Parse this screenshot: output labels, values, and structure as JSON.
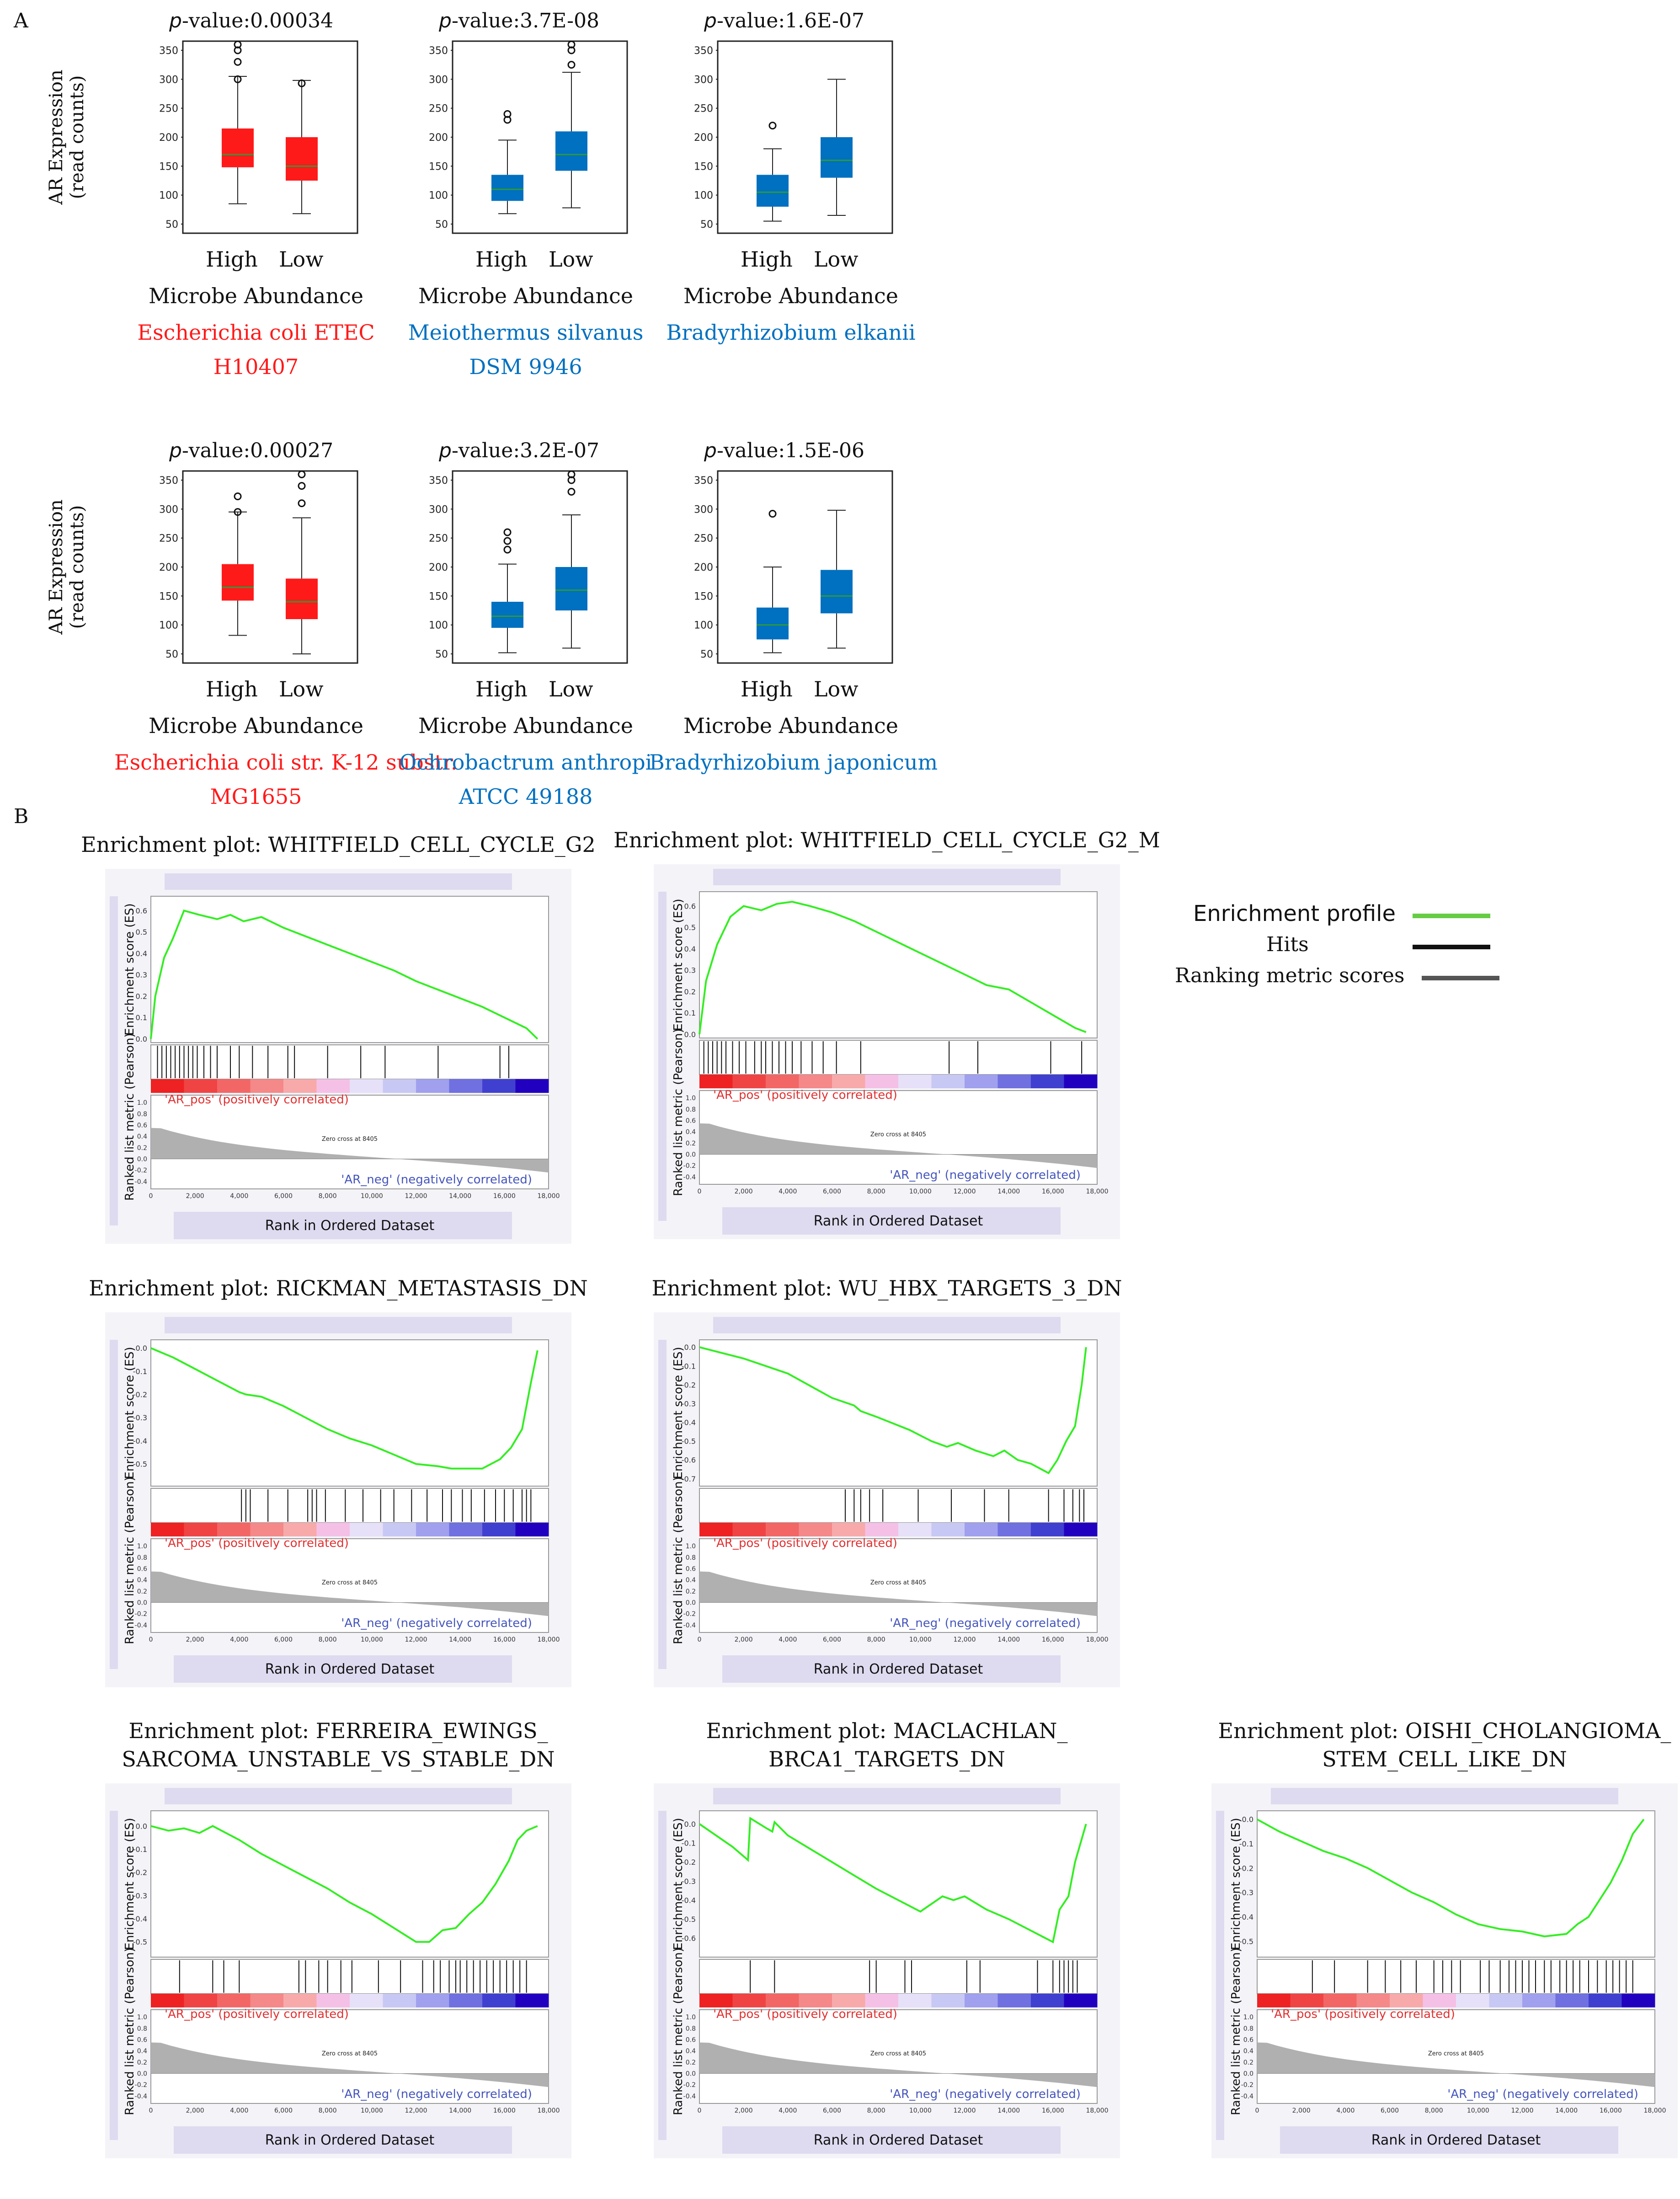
{
  "panel_labels": {
    "a": "A",
    "b": "B"
  },
  "panel_a": {
    "y_axis_title_line1": "AR Expression",
    "y_axis_title_line2": "(read counts)",
    "x_label": "Microbe Abundance",
    "group_high": "High",
    "group_low": "Low",
    "pvalue_prefix": "p",
    "plots": [
      {
        "pvalue": "-value:0.00034",
        "microbe_line1": "Escherichia coli ETEC",
        "microbe_line2": "H10407",
        "color": "#ff1a1a"
      },
      {
        "pvalue": "-value:3.7E-08",
        "microbe_line1": "Meiothermus silvanus",
        "microbe_line2": "DSM 9946",
        "color": "#0070c0"
      },
      {
        "pvalue": "-value:1.6E-07",
        "microbe_line1": "Bradyrhizobium elkanii",
        "microbe_line2": "",
        "color": "#0070c0"
      },
      {
        "pvalue": "-value:0.00027",
        "microbe_line1": "Escherichia coli str. K-12 substr.",
        "microbe_line2": "MG1655",
        "color": "#ff1a1a"
      },
      {
        "pvalue": "-value:3.2E-07",
        "microbe_line1": "Ochrobactrum anthropi",
        "microbe_line2": "ATCC 49188",
        "color": "#0070c0"
      },
      {
        "pvalue": "-value:1.5E-06",
        "microbe_line1": "Bradyrhizobium japonicum",
        "microbe_line2": "",
        "color": "#0070c0"
      }
    ]
  },
  "panel_b": {
    "es_label": "Enrichment score (ES)",
    "rank_label": "Ranked list metric (Pearson)",
    "x_label": "Rank in Ordered Dataset",
    "pos_label": "'AR_pos' (positively correlated)",
    "neg_label": "'AR_neg' (negatively correlated)",
    "zero_cross": "Zero cross at 8405",
    "titles": [
      [
        "Enrichment plot: WHITFIELD_CELL_CYCLE_G2"
      ],
      [
        "Enrichment plot: WHITFIELD_CELL_CYCLE_G2_M"
      ],
      [
        "Enrichment plot: RICKMAN_METASTASIS_DN"
      ],
      [
        "Enrichment plot: WU_HBX_TARGETS_3_DN"
      ],
      [
        "Enrichment plot: FERREIRA_EWINGS_",
        "SARCOMA_UNSTABLE_VS_STABLE_DN"
      ],
      [
        "Enrichment plot: MACLACHLAN_",
        "BRCA1_TARGETS_DN"
      ],
      [
        "Enrichment plot: OISHI_CHOLANGIOMA_",
        "STEM_CELL_LIKE_DN"
      ]
    ]
  },
  "legend": {
    "items": [
      {
        "label": "Enrichment profile",
        "color": "#66cc44"
      },
      {
        "label": "Hits",
        "color": "#111111"
      },
      {
        "label": "Ranking metric scores",
        "color": "#555555"
      }
    ]
  },
  "chart_data": [
    {
      "type": "box",
      "title": "p-value:0.00034",
      "xlabel": "Microbe Abundance",
      "ylabel": "AR Expression (read counts)",
      "categories": [
        "High",
        "Low"
      ],
      "ylim": [
        50,
        350
      ],
      "yticks": [
        50,
        100,
        150,
        200,
        250,
        300,
        350
      ],
      "boxes": [
        {
          "min": 85,
          "q1": 148,
          "median": 170,
          "q3": 215,
          "max": 305,
          "outliers": [
            300,
            330,
            350,
            360
          ]
        },
        {
          "min": 68,
          "q1": 125,
          "median": 150,
          "q3": 200,
          "max": 298,
          "outliers": [
            293
          ]
        }
      ]
    },
    {
      "type": "box",
      "title": "p-value:3.7E-08",
      "xlabel": "Microbe Abundance",
      "ylabel": "AR Expression (read counts)",
      "categories": [
        "High",
        "Low"
      ],
      "ylim": [
        50,
        350
      ],
      "yticks": [
        50,
        100,
        150,
        200,
        250,
        300,
        350
      ],
      "boxes": [
        {
          "min": 68,
          "q1": 90,
          "median": 110,
          "q3": 135,
          "max": 195,
          "outliers": [
            230,
            240
          ]
        },
        {
          "min": 78,
          "q1": 142,
          "median": 170,
          "q3": 210,
          "max": 312,
          "outliers": [
            325,
            350,
            360
          ]
        }
      ]
    },
    {
      "type": "box",
      "title": "p-value:1.6E-07",
      "xlabel": "Microbe Abundance",
      "ylabel": "",
      "categories": [
        "High",
        "Low"
      ],
      "ylim": [
        50,
        350
      ],
      "yticks": [
        50,
        100,
        150,
        200,
        250,
        300,
        350
      ],
      "boxes": [
        {
          "min": 55,
          "q1": 80,
          "median": 105,
          "q3": 135,
          "max": 180,
          "outliers": [
            220
          ]
        },
        {
          "min": 65,
          "q1": 130,
          "median": 160,
          "q3": 200,
          "max": 300,
          "outliers": []
        }
      ]
    },
    {
      "type": "box",
      "title": "p-value:0.00027",
      "xlabel": "Microbe Abundance",
      "ylabel": "AR Expression (read counts)",
      "categories": [
        "High",
        "Low"
      ],
      "ylim": [
        50,
        350
      ],
      "yticks": [
        50,
        100,
        150,
        200,
        250,
        300,
        350
      ],
      "boxes": [
        {
          "min": 82,
          "q1": 142,
          "median": 165,
          "q3": 205,
          "max": 295,
          "outliers": [
            295,
            322
          ]
        },
        {
          "min": 50,
          "q1": 110,
          "median": 140,
          "q3": 180,
          "max": 285,
          "outliers": [
            310,
            340,
            360
          ]
        }
      ]
    },
    {
      "type": "box",
      "title": "p-value:3.2E-07",
      "xlabel": "Microbe Abundance",
      "ylabel": "",
      "categories": [
        "High",
        "Low"
      ],
      "ylim": [
        50,
        350
      ],
      "yticks": [
        50,
        100,
        150,
        200,
        250,
        300,
        350
      ],
      "boxes": [
        {
          "min": 52,
          "q1": 95,
          "median": 115,
          "q3": 140,
          "max": 205,
          "outliers": [
            230,
            245,
            260
          ]
        },
        {
          "min": 60,
          "q1": 125,
          "median": 160,
          "q3": 200,
          "max": 290,
          "outliers": [
            330,
            350,
            360
          ]
        }
      ]
    },
    {
      "type": "box",
      "title": "p-value:1.5E-06",
      "xlabel": "Microbe Abundance",
      "ylabel": "",
      "categories": [
        "High",
        "Low"
      ],
      "ylim": [
        50,
        350
      ],
      "yticks": [
        50,
        100,
        150,
        200,
        250,
        300,
        350
      ],
      "boxes": [
        {
          "min": 52,
          "q1": 75,
          "median": 100,
          "q3": 130,
          "max": 200,
          "outliers": [
            292
          ]
        },
        {
          "min": 60,
          "q1": 120,
          "median": 150,
          "q3": 195,
          "max": 298,
          "outliers": []
        }
      ]
    },
    {
      "type": "line",
      "title": "Enrichment plot: WHITFIELD_CELL_CYCLE_G2",
      "ylabel": "Enrichment score (ES)",
      "xlabel": "Rank in Ordered Dataset",
      "ylim": [
        0,
        0.65
      ],
      "yticks": [
        0.0,
        0.1,
        0.2,
        0.3,
        0.4,
        0.5,
        0.6
      ],
      "xlim": [
        0,
        18000
      ],
      "xticks": [
        0,
        2000,
        4000,
        6000,
        8000,
        10000,
        12000,
        14000,
        16000,
        18000
      ],
      "x": [
        0,
        200,
        600,
        1000,
        1500,
        2200,
        3000,
        3600,
        4200,
        5000,
        6000,
        7000,
        8000,
        9000,
        10000,
        11000,
        12000,
        13000,
        14000,
        15000,
        16000,
        17000,
        17500
      ],
      "y": [
        0,
        0.2,
        0.38,
        0.47,
        0.6,
        0.58,
        0.56,
        0.58,
        0.55,
        0.57,
        0.52,
        0.48,
        0.44,
        0.4,
        0.36,
        0.32,
        0.27,
        0.23,
        0.19,
        0.15,
        0.1,
        0.05,
        0.0
      ],
      "hits": [
        300,
        500,
        700,
        900,
        1100,
        1300,
        1500,
        1700,
        1900,
        2100,
        2400,
        2700,
        3000,
        3600,
        4000,
        4600,
        5300,
        6200,
        6500,
        8000,
        9500,
        10600,
        13000,
        15800,
        16200
      ]
    },
    {
      "type": "line",
      "title": "Enrichment plot: WHITFIELD_CELL_CYCLE_G2_M",
      "ylabel": "Enrichment score (ES)",
      "xlabel": "Rank in Ordered Dataset",
      "ylim": [
        0,
        0.65
      ],
      "yticks": [
        0.0,
        0.1,
        0.2,
        0.3,
        0.4,
        0.5,
        0.6
      ],
      "xlim": [
        0,
        18000
      ],
      "xticks": [
        0,
        2000,
        4000,
        6000,
        8000,
        10000,
        12000,
        14000,
        16000,
        18000
      ],
      "x": [
        0,
        300,
        800,
        1400,
        2000,
        2800,
        3500,
        4200,
        5000,
        6000,
        7000,
        8000,
        9000,
        10000,
        11000,
        12000,
        13000,
        14000,
        15000,
        16000,
        17000,
        17500
      ],
      "y": [
        0,
        0.25,
        0.42,
        0.55,
        0.6,
        0.58,
        0.61,
        0.62,
        0.6,
        0.57,
        0.53,
        0.48,
        0.43,
        0.38,
        0.33,
        0.28,
        0.23,
        0.21,
        0.15,
        0.09,
        0.03,
        0.01
      ],
      "hits": [
        200,
        400,
        600,
        800,
        1000,
        1200,
        1500,
        1800,
        2100,
        2500,
        2800,
        3000,
        3300,
        3600,
        3900,
        4200,
        4600,
        5100,
        5600,
        6200,
        7300,
        11300,
        12600,
        15900,
        17300
      ]
    },
    {
      "type": "line",
      "title": "Enrichment plot: RICKMAN_METASTASIS_DN",
      "ylabel": "Enrichment score (ES)",
      "xlabel": "Rank in Ordered Dataset",
      "ylim": [
        -0.58,
        0.02
      ],
      "yticks": [
        0.0,
        -0.1,
        -0.2,
        -0.3,
        -0.4,
        -0.5
      ],
      "xlim": [
        0,
        18000
      ],
      "xticks": [
        0,
        2000,
        4000,
        6000,
        8000,
        10000,
        12000,
        14000,
        16000,
        18000
      ],
      "x": [
        0,
        1000,
        2000,
        3000,
        4000,
        4300,
        5000,
        6000,
        7000,
        8000,
        9000,
        10000,
        11000,
        12000,
        13000,
        13600,
        14200,
        15000,
        15800,
        16300,
        16800,
        17200,
        17500
      ],
      "y": [
        0,
        -0.04,
        -0.09,
        -0.14,
        -0.19,
        -0.2,
        -0.21,
        -0.25,
        -0.3,
        -0.35,
        -0.39,
        -0.42,
        -0.46,
        -0.5,
        -0.51,
        -0.52,
        -0.52,
        -0.52,
        -0.48,
        -0.43,
        -0.35,
        -0.15,
        -0.01
      ],
      "hits": [
        4100,
        4300,
        4500,
        5300,
        6200,
        7100,
        7300,
        7500,
        7900,
        8800,
        9600,
        10400,
        11000,
        11800,
        12500,
        13200,
        13600,
        14100,
        14500,
        15100,
        15600,
        16000,
        16400,
        16800,
        17000,
        17200
      ]
    },
    {
      "type": "line",
      "title": "Enrichment plot: WU_HBX_TARGETS_3_DN",
      "ylabel": "Enrichment score (ES)",
      "xlabel": "Rank in Ordered Dataset",
      "ylim": [
        -0.72,
        0.02
      ],
      "yticks": [
        0.0,
        -0.1,
        -0.2,
        -0.3,
        -0.4,
        -0.5,
        -0.6,
        -0.7
      ],
      "xlim": [
        0,
        18000
      ],
      "xticks": [
        0,
        2000,
        4000,
        6000,
        8000,
        10000,
        12000,
        14000,
        16000,
        18000
      ],
      "x": [
        0,
        2000,
        4000,
        6000,
        7000,
        7300,
        8000,
        9500,
        10500,
        11200,
        11700,
        12500,
        13300,
        13800,
        14400,
        15000,
        15800,
        16200,
        16600,
        17000,
        17300,
        17500
      ],
      "y": [
        0,
        -0.06,
        -0.14,
        -0.27,
        -0.31,
        -0.34,
        -0.37,
        -0.44,
        -0.5,
        -0.53,
        -0.51,
        -0.55,
        -0.58,
        -0.55,
        -0.6,
        -0.62,
        -0.67,
        -0.6,
        -0.5,
        -0.42,
        -0.2,
        0.0
      ],
      "hits": [
        6600,
        7000,
        7300,
        7700,
        8300,
        9900,
        11400,
        12900,
        14000,
        15800,
        16500,
        16900,
        17200,
        17400
      ]
    },
    {
      "type": "line",
      "title": "Enrichment plot: FERREIRA_EWINGS_ SARCOMA_UNSTABLE_VS_STABLE_DN",
      "ylabel": "Enrichment score (ES)",
      "xlabel": "Rank in Ordered Dataset",
      "ylim": [
        -0.55,
        0.05
      ],
      "yticks": [
        0.0,
        -0.1,
        -0.2,
        -0.3,
        -0.4,
        -0.5
      ],
      "xlim": [
        0,
        18000
      ],
      "xticks": [
        0,
        2000,
        4000,
        6000,
        8000,
        10000,
        12000,
        14000,
        16000,
        18000
      ],
      "x": [
        0,
        800,
        1500,
        2200,
        2800,
        3400,
        4000,
        5000,
        6000,
        7000,
        8000,
        9000,
        10000,
        11000,
        12000,
        12600,
        13200,
        13800,
        14400,
        15000,
        15600,
        16200,
        16600,
        17000,
        17500
      ],
      "y": [
        0,
        -0.02,
        -0.01,
        -0.03,
        0.0,
        -0.03,
        -0.06,
        -0.12,
        -0.17,
        -0.22,
        -0.27,
        -0.33,
        -0.38,
        -0.44,
        -0.5,
        -0.5,
        -0.45,
        -0.44,
        -0.38,
        -0.33,
        -0.25,
        -0.15,
        -0.06,
        -0.02,
        0.0
      ],
      "hits": [
        1300,
        2800,
        3300,
        4000,
        6700,
        7000,
        7600,
        8000,
        8600,
        9100,
        10300,
        11300,
        12300,
        12800,
        13100,
        13500,
        13800,
        14000,
        14300,
        14600,
        14900,
        15200,
        15500,
        15800,
        16100,
        16400,
        16700,
        17000
      ]
    },
    {
      "type": "line",
      "title": "Enrichment plot: MACLACHLAN_ BRCA1_TARGETS_DN",
      "ylabel": "Enrichment score (ES)",
      "xlabel": "Rank in Ordered Dataset",
      "ylim": [
        -0.68,
        0.05
      ],
      "yticks": [
        0.0,
        -0.1,
        -0.2,
        -0.3,
        -0.4,
        -0.5,
        -0.6
      ],
      "xlim": [
        0,
        18000
      ],
      "xticks": [
        0,
        2000,
        4000,
        6000,
        8000,
        10000,
        12000,
        14000,
        16000,
        18000
      ],
      "x": [
        0,
        1500,
        2200,
        2300,
        3000,
        3300,
        3400,
        4000,
        5000,
        6000,
        7000,
        8000,
        9000,
        10000,
        11000,
        11500,
        12000,
        13000,
        14000,
        15000,
        16000,
        16300,
        16700,
        17000,
        17500
      ],
      "y": [
        0,
        -0.12,
        -0.19,
        0.03,
        -0.02,
        -0.04,
        0.01,
        -0.06,
        -0.13,
        -0.2,
        -0.27,
        -0.34,
        -0.4,
        -0.46,
        -0.38,
        -0.4,
        -0.38,
        -0.45,
        -0.5,
        -0.56,
        -0.62,
        -0.45,
        -0.38,
        -0.2,
        0.0
      ],
      "hits": [
        2300,
        3400,
        7700,
        8000,
        9300,
        9600,
        12100,
        12700,
        15300,
        16000,
        16300,
        16500,
        16700,
        16900,
        17100
      ]
    },
    {
      "type": "line",
      "title": "Enrichment plot: OISHI_CHOLANGIOMA_ STEM_CELL_LIKE_DN",
      "ylabel": "Enrichment score (ES)",
      "xlabel": "Rank in Ordered Dataset",
      "ylim": [
        -0.55,
        0.02
      ],
      "yticks": [
        0.0,
        -0.1,
        -0.2,
        -0.3,
        -0.4,
        -0.5
      ],
      "xlim": [
        0,
        18000
      ],
      "xticks": [
        0,
        2000,
        4000,
        6000,
        8000,
        10000,
        12000,
        14000,
        16000,
        18000
      ],
      "x": [
        0,
        1000,
        2000,
        3000,
        4000,
        5000,
        6000,
        7000,
        8000,
        9000,
        10000,
        11000,
        12000,
        13000,
        14000,
        14500,
        15000,
        15500,
        16000,
        16500,
        17000,
        17500
      ],
      "y": [
        0,
        -0.05,
        -0.09,
        -0.13,
        -0.16,
        -0.2,
        -0.25,
        -0.3,
        -0.34,
        -0.39,
        -0.43,
        -0.45,
        -0.46,
        -0.48,
        -0.47,
        -0.43,
        -0.4,
        -0.33,
        -0.26,
        -0.17,
        -0.06,
        0.0
      ],
      "hits": [
        2500,
        3500,
        5000,
        5800,
        6500,
        7200,
        8000,
        8400,
        8800,
        9200,
        10100,
        10500,
        11000,
        11400,
        11700,
        12000,
        12300,
        12600,
        13000,
        13300,
        13700,
        14000,
        14300,
        14600,
        15000,
        15400,
        15800,
        16100,
        16400,
        16700,
        17000
      ]
    }
  ]
}
